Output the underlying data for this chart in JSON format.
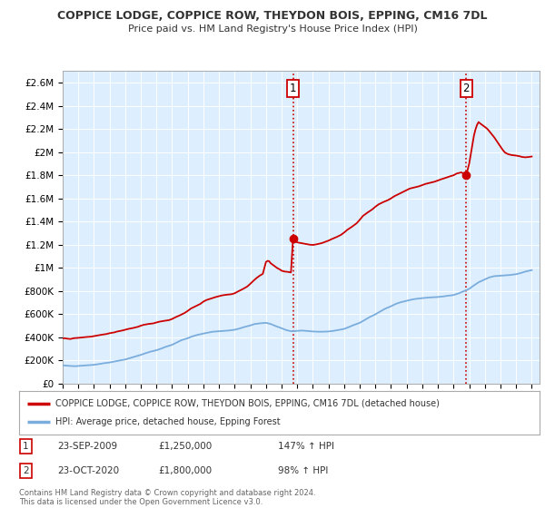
{
  "title": "COPPICE LODGE, COPPICE ROW, THEYDON BOIS, EPPING, CM16 7DL",
  "subtitle": "Price paid vs. HM Land Registry's House Price Index (HPI)",
  "ylim": [
    0,
    2700000
  ],
  "yticks": [
    0,
    200000,
    400000,
    600000,
    800000,
    1000000,
    1200000,
    1400000,
    1600000,
    1800000,
    2000000,
    2200000,
    2400000,
    2600000
  ],
  "ytick_labels": [
    "£0",
    "£200K",
    "£400K",
    "£600K",
    "£800K",
    "£1M",
    "£1.2M",
    "£1.4M",
    "£1.6M",
    "£1.8M",
    "£2M",
    "£2.2M",
    "£2.4M",
    "£2.6M"
  ],
  "xlim_start": 1995.0,
  "xlim_end": 2025.5,
  "xticks": [
    1995,
    1996,
    1997,
    1998,
    1999,
    2000,
    2001,
    2002,
    2003,
    2004,
    2005,
    2006,
    2007,
    2008,
    2009,
    2010,
    2011,
    2012,
    2013,
    2014,
    2015,
    2016,
    2017,
    2018,
    2019,
    2020,
    2021,
    2022,
    2023,
    2024,
    2025
  ],
  "property_color": "#cc0000",
  "hpi_color": "#7aaddc",
  "plot_bg_color": "#ddeeff",
  "vline_color": "#cc0000",
  "marker1_year": 2009.73,
  "marker1_price": 1250000,
  "marker1_label": "1",
  "marker2_year": 2020.81,
  "marker2_price": 1800000,
  "marker2_label": "2",
  "legend_property": "COPPICE LODGE, COPPICE ROW, THEYDON BOIS, EPPING, CM16 7DL (detached house)",
  "legend_hpi": "HPI: Average price, detached house, Epping Forest",
  "note1_num": "1",
  "note1_date": "23-SEP-2009",
  "note1_price": "£1,250,000",
  "note1_hpi": "147% ↑ HPI",
  "note2_num": "2",
  "note2_date": "23-OCT-2020",
  "note2_price": "£1,800,000",
  "note2_hpi": "98% ↑ HPI",
  "footer": "Contains HM Land Registry data © Crown copyright and database right 2024.\nThis data is licensed under the Open Government Licence v3.0.",
  "bg_color": "#ffffff",
  "grid_color": "#ffffff",
  "property_data": [
    [
      1995.0,
      390000
    ],
    [
      1995.1,
      392000
    ],
    [
      1995.3,
      388000
    ],
    [
      1995.5,
      385000
    ],
    [
      1995.7,
      392000
    ],
    [
      1996.0,
      395000
    ],
    [
      1996.2,
      398000
    ],
    [
      1996.5,
      402000
    ],
    [
      1996.8,
      405000
    ],
    [
      1997.0,
      410000
    ],
    [
      1997.2,
      415000
    ],
    [
      1997.5,
      422000
    ],
    [
      1997.8,
      428000
    ],
    [
      1998.0,
      435000
    ],
    [
      1998.3,
      442000
    ],
    [
      1998.5,
      450000
    ],
    [
      1998.8,
      458000
    ],
    [
      1999.0,
      465000
    ],
    [
      1999.2,
      472000
    ],
    [
      1999.5,
      480000
    ],
    [
      1999.8,
      490000
    ],
    [
      2000.0,
      500000
    ],
    [
      2000.2,
      508000
    ],
    [
      2000.5,
      515000
    ],
    [
      2000.8,
      520000
    ],
    [
      2001.0,
      528000
    ],
    [
      2001.2,
      535000
    ],
    [
      2001.5,
      542000
    ],
    [
      2001.8,
      548000
    ],
    [
      2002.0,
      558000
    ],
    [
      2002.2,
      572000
    ],
    [
      2002.5,
      590000
    ],
    [
      2002.8,
      610000
    ],
    [
      2003.0,
      628000
    ],
    [
      2003.2,
      648000
    ],
    [
      2003.5,
      668000
    ],
    [
      2003.8,
      688000
    ],
    [
      2004.0,
      708000
    ],
    [
      2004.2,
      722000
    ],
    [
      2004.5,
      735000
    ],
    [
      2004.8,
      748000
    ],
    [
      2005.0,
      755000
    ],
    [
      2005.2,
      762000
    ],
    [
      2005.5,
      768000
    ],
    [
      2005.8,
      772000
    ],
    [
      2006.0,
      780000
    ],
    [
      2006.2,
      795000
    ],
    [
      2006.5,
      815000
    ],
    [
      2006.8,
      838000
    ],
    [
      2007.0,
      862000
    ],
    [
      2007.2,
      888000
    ],
    [
      2007.4,
      912000
    ],
    [
      2007.6,
      932000
    ],
    [
      2007.8,
      948000
    ],
    [
      2008.0,
      1050000
    ],
    [
      2008.1,
      1060000
    ],
    [
      2008.2,
      1058000
    ],
    [
      2008.3,
      1040000
    ],
    [
      2008.5,
      1020000
    ],
    [
      2008.7,
      1000000
    ],
    [
      2008.9,
      985000
    ],
    [
      2009.0,
      975000
    ],
    [
      2009.2,
      968000
    ],
    [
      2009.4,
      965000
    ],
    [
      2009.6,
      960000
    ],
    [
      2009.73,
      1250000
    ],
    [
      2009.9,
      1235000
    ],
    [
      2010.0,
      1220000
    ],
    [
      2010.2,
      1215000
    ],
    [
      2010.4,
      1210000
    ],
    [
      2010.6,
      1205000
    ],
    [
      2010.8,
      1200000
    ],
    [
      2011.0,
      1198000
    ],
    [
      2011.2,
      1202000
    ],
    [
      2011.4,
      1208000
    ],
    [
      2011.6,
      1215000
    ],
    [
      2011.8,
      1225000
    ],
    [
      2012.0,
      1235000
    ],
    [
      2012.2,
      1248000
    ],
    [
      2012.5,
      1265000
    ],
    [
      2012.8,
      1285000
    ],
    [
      2013.0,
      1305000
    ],
    [
      2013.2,
      1328000
    ],
    [
      2013.5,
      1355000
    ],
    [
      2013.8,
      1385000
    ],
    [
      2014.0,
      1415000
    ],
    [
      2014.2,
      1448000
    ],
    [
      2014.5,
      1478000
    ],
    [
      2014.8,
      1505000
    ],
    [
      2015.0,
      1528000
    ],
    [
      2015.2,
      1548000
    ],
    [
      2015.5,
      1568000
    ],
    [
      2015.8,
      1585000
    ],
    [
      2016.0,
      1600000
    ],
    [
      2016.2,
      1618000
    ],
    [
      2016.5,
      1638000
    ],
    [
      2016.8,
      1658000
    ],
    [
      2017.0,
      1672000
    ],
    [
      2017.2,
      1685000
    ],
    [
      2017.5,
      1695000
    ],
    [
      2017.8,
      1705000
    ],
    [
      2018.0,
      1715000
    ],
    [
      2018.2,
      1725000
    ],
    [
      2018.5,
      1735000
    ],
    [
      2018.8,
      1745000
    ],
    [
      2019.0,
      1755000
    ],
    [
      2019.2,
      1765000
    ],
    [
      2019.5,
      1778000
    ],
    [
      2019.8,
      1792000
    ],
    [
      2020.0,
      1800000
    ],
    [
      2020.2,
      1815000
    ],
    [
      2020.5,
      1825000
    ],
    [
      2020.81,
      1800000
    ],
    [
      2021.0,
      1900000
    ],
    [
      2021.1,
      1980000
    ],
    [
      2021.2,
      2060000
    ],
    [
      2021.3,
      2140000
    ],
    [
      2021.4,
      2195000
    ],
    [
      2021.5,
      2235000
    ],
    [
      2021.6,
      2260000
    ],
    [
      2021.7,
      2248000
    ],
    [
      2021.8,
      2238000
    ],
    [
      2021.9,
      2228000
    ],
    [
      2022.0,
      2218000
    ],
    [
      2022.1,
      2208000
    ],
    [
      2022.2,
      2195000
    ],
    [
      2022.3,
      2178000
    ],
    [
      2022.4,
      2162000
    ],
    [
      2022.5,
      2145000
    ],
    [
      2022.6,
      2128000
    ],
    [
      2022.7,
      2108000
    ],
    [
      2022.8,
      2088000
    ],
    [
      2022.9,
      2068000
    ],
    [
      2023.0,
      2048000
    ],
    [
      2023.1,
      2028000
    ],
    [
      2023.2,
      2010000
    ],
    [
      2023.3,
      1995000
    ],
    [
      2023.5,
      1982000
    ],
    [
      2023.7,
      1975000
    ],
    [
      2023.9,
      1972000
    ],
    [
      2024.0,
      1970000
    ],
    [
      2024.2,
      1965000
    ],
    [
      2024.4,
      1958000
    ],
    [
      2024.6,
      1955000
    ],
    [
      2024.8,
      1958000
    ],
    [
      2025.0,
      1962000
    ]
  ],
  "hpi_data": [
    [
      1995.0,
      158000
    ],
    [
      1995.2,
      155000
    ],
    [
      1995.5,
      152000
    ],
    [
      1995.8,
      150000
    ],
    [
      1996.0,
      152000
    ],
    [
      1996.3,
      155000
    ],
    [
      1996.6,
      158000
    ],
    [
      1997.0,
      162000
    ],
    [
      1997.3,
      168000
    ],
    [
      1997.6,
      175000
    ],
    [
      1998.0,
      182000
    ],
    [
      1998.3,
      190000
    ],
    [
      1998.6,
      198000
    ],
    [
      1999.0,
      208000
    ],
    [
      1999.3,
      220000
    ],
    [
      1999.6,
      232000
    ],
    [
      2000.0,
      248000
    ],
    [
      2000.3,
      262000
    ],
    [
      2000.6,
      275000
    ],
    [
      2001.0,
      288000
    ],
    [
      2001.3,
      302000
    ],
    [
      2001.6,
      318000
    ],
    [
      2002.0,
      335000
    ],
    [
      2002.3,
      355000
    ],
    [
      2002.6,
      375000
    ],
    [
      2003.0,
      392000
    ],
    [
      2003.3,
      408000
    ],
    [
      2003.6,
      420000
    ],
    [
      2004.0,
      432000
    ],
    [
      2004.3,
      440000
    ],
    [
      2004.6,
      448000
    ],
    [
      2005.0,
      452000
    ],
    [
      2005.3,
      455000
    ],
    [
      2005.6,
      458000
    ],
    [
      2006.0,
      465000
    ],
    [
      2006.3,
      475000
    ],
    [
      2006.6,
      488000
    ],
    [
      2007.0,
      502000
    ],
    [
      2007.3,
      515000
    ],
    [
      2007.6,
      520000
    ],
    [
      2008.0,
      525000
    ],
    [
      2008.3,
      515000
    ],
    [
      2008.6,
      498000
    ],
    [
      2009.0,
      478000
    ],
    [
      2009.3,
      462000
    ],
    [
      2009.6,
      452000
    ],
    [
      2010.0,
      455000
    ],
    [
      2010.3,
      458000
    ],
    [
      2010.6,
      455000
    ],
    [
      2011.0,
      450000
    ],
    [
      2011.3,
      448000
    ],
    [
      2011.6,
      448000
    ],
    [
      2012.0,
      450000
    ],
    [
      2012.3,
      455000
    ],
    [
      2012.6,
      462000
    ],
    [
      2013.0,
      472000
    ],
    [
      2013.3,
      488000
    ],
    [
      2013.6,
      505000
    ],
    [
      2014.0,
      525000
    ],
    [
      2014.3,
      548000
    ],
    [
      2014.6,
      572000
    ],
    [
      2015.0,
      598000
    ],
    [
      2015.3,
      622000
    ],
    [
      2015.6,
      645000
    ],
    [
      2016.0,
      668000
    ],
    [
      2016.3,
      688000
    ],
    [
      2016.6,
      702000
    ],
    [
      2017.0,
      715000
    ],
    [
      2017.3,
      725000
    ],
    [
      2017.6,
      732000
    ],
    [
      2018.0,
      738000
    ],
    [
      2018.3,
      742000
    ],
    [
      2018.6,
      745000
    ],
    [
      2019.0,
      748000
    ],
    [
      2019.3,
      752000
    ],
    [
      2019.6,
      758000
    ],
    [
      2020.0,
      765000
    ],
    [
      2020.3,
      778000
    ],
    [
      2020.6,
      795000
    ],
    [
      2021.0,
      818000
    ],
    [
      2021.3,
      848000
    ],
    [
      2021.6,
      875000
    ],
    [
      2022.0,
      900000
    ],
    [
      2022.3,
      918000
    ],
    [
      2022.6,
      928000
    ],
    [
      2023.0,
      932000
    ],
    [
      2023.3,
      935000
    ],
    [
      2023.6,
      938000
    ],
    [
      2024.0,
      945000
    ],
    [
      2024.3,
      955000
    ],
    [
      2024.6,
      968000
    ],
    [
      2025.0,
      980000
    ]
  ]
}
